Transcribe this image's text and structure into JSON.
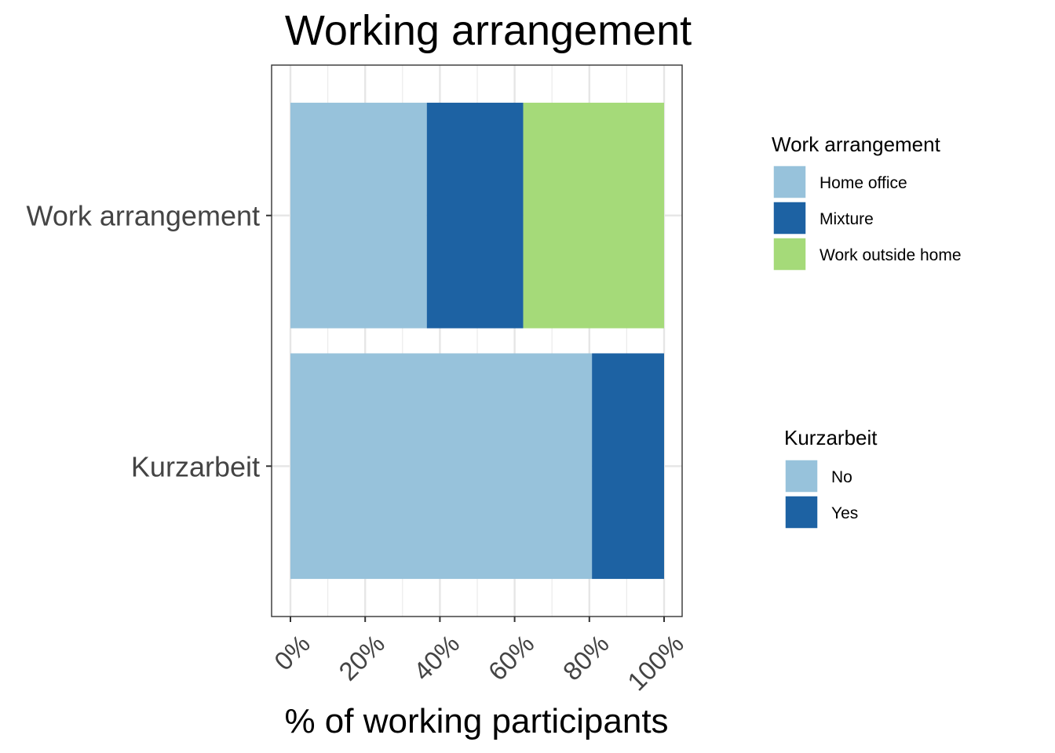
{
  "chart_data": {
    "type": "bar",
    "orientation": "horizontal",
    "stacked": true,
    "title": "Working arrangement",
    "xlabel": "% of working participants",
    "xlim": [
      0,
      100
    ],
    "x_ticks": [
      0,
      20,
      40,
      60,
      80,
      100
    ],
    "x_tick_labels": [
      "0%",
      "20%",
      "40%",
      "60%",
      "80%",
      "100%"
    ],
    "grid": true,
    "legend_position": "right",
    "categories": [
      "Work arrangement",
      "Kurzarbeit"
    ],
    "groups": [
      {
        "category": "Work arrangement",
        "legend_title": "Work arrangement",
        "segments": [
          {
            "name": "Home office",
            "value": 36.5,
            "color": "#97C2DB"
          },
          {
            "name": "Mixture",
            "value": 25.8,
            "color": "#1D62A3"
          },
          {
            "name": "Work outside home",
            "value": 37.7,
            "color": "#A5DA79"
          }
        ]
      },
      {
        "category": "Kurzarbeit",
        "legend_title": "Kurzarbeit",
        "segments": [
          {
            "name": "No",
            "value": 80.7,
            "color": "#97C2DB"
          },
          {
            "name": "Yes",
            "value": 19.3,
            "color": "#1D62A3"
          }
        ]
      }
    ]
  }
}
